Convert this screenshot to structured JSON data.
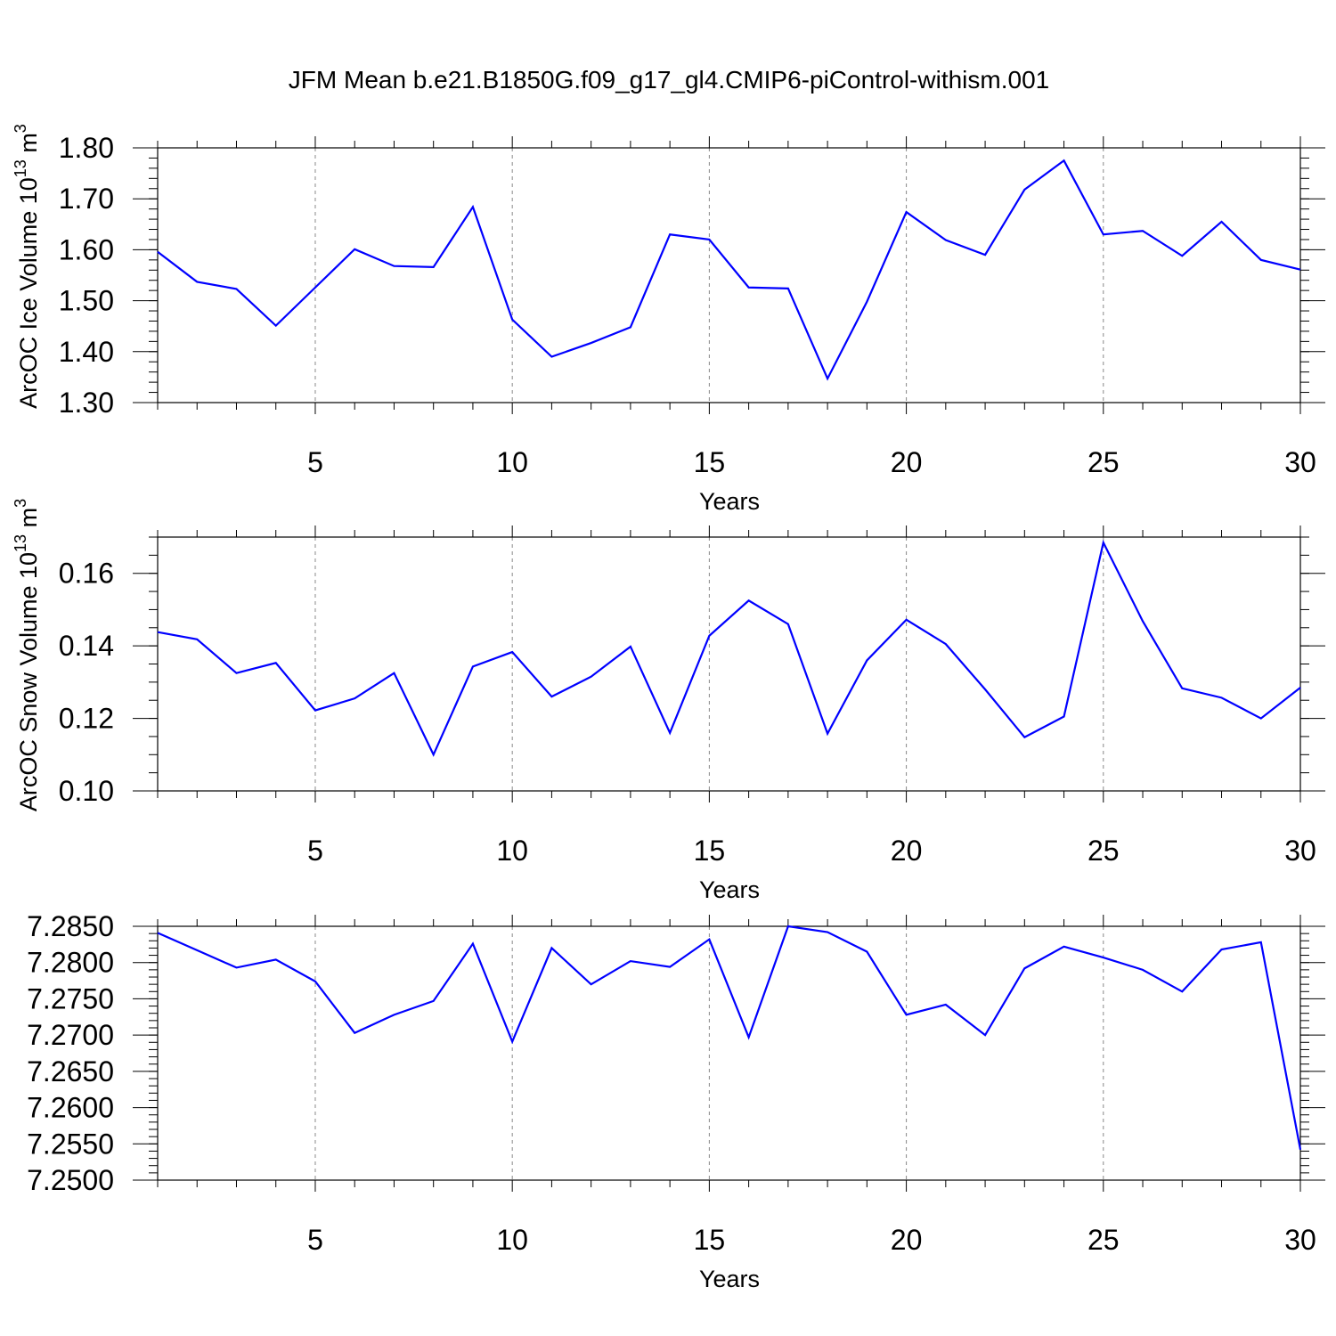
{
  "title": "JFM Mean b.e21.B1850G.f09_g17_gl4.CMIP6-piControl-withism.001",
  "line_color": "#0000ff",
  "chart_data": [
    {
      "type": "line",
      "ylabel": "ArcOC Ice Volume 10",
      "ylabel_exp": "13",
      "ylabel_unit": " m",
      "ylabel_unit_exp": "3",
      "xlabel": "Years",
      "xlim": [
        1,
        30
      ],
      "ylim": [
        1.3,
        1.8
      ],
      "x_ticks": [
        5,
        10,
        15,
        20,
        25,
        30
      ],
      "y_ticks": [
        1.3,
        1.4,
        1.5,
        1.6,
        1.7,
        1.8
      ],
      "y_tick_labels": [
        "1.30",
        "1.40",
        "1.50",
        "1.60",
        "1.70",
        "1.80"
      ],
      "y_minor_step": 0.02,
      "grid_x": [
        5,
        10,
        15,
        20,
        25
      ],
      "x": [
        1,
        2,
        3,
        4,
        5,
        6,
        7,
        8,
        9,
        10,
        11,
        12,
        13,
        14,
        15,
        16,
        17,
        18,
        19,
        20,
        21,
        22,
        23,
        24,
        25,
        26,
        27,
        28,
        29,
        30
      ],
      "values": [
        1.596,
        1.537,
        1.523,
        1.451,
        1.526,
        1.601,
        1.568,
        1.566,
        1.684,
        1.463,
        1.39,
        1.417,
        1.448,
        1.63,
        1.62,
        1.526,
        1.524,
        1.347,
        1.498,
        1.674,
        1.619,
        1.59,
        1.718,
        1.775,
        1.63,
        1.637,
        1.588,
        1.655,
        1.58,
        1.561
      ]
    },
    {
      "type": "line",
      "ylabel": "ArcOC Snow Volume 10",
      "ylabel_exp": "13",
      "ylabel_unit": " m",
      "ylabel_unit_exp": "3",
      "xlabel": "Years",
      "xlim": [
        1,
        30
      ],
      "ylim": [
        0.1,
        0.17
      ],
      "x_ticks": [
        5,
        10,
        15,
        20,
        25,
        30
      ],
      "y_ticks": [
        0.1,
        0.12,
        0.14,
        0.16
      ],
      "y_tick_labels": [
        "0.10",
        "0.12",
        "0.14",
        "0.16"
      ],
      "y_minor_step": 0.005,
      "grid_x": [
        5,
        10,
        15,
        20,
        25
      ],
      "x": [
        1,
        2,
        3,
        4,
        5,
        6,
        7,
        8,
        9,
        10,
        11,
        12,
        13,
        14,
        15,
        16,
        17,
        18,
        19,
        20,
        21,
        22,
        23,
        24,
        25,
        26,
        27,
        28,
        29,
        30
      ],
      "values": [
        0.1438,
        0.1418,
        0.1325,
        0.1353,
        0.1222,
        0.1255,
        0.1325,
        0.11,
        0.1343,
        0.1383,
        0.126,
        0.1315,
        0.1398,
        0.116,
        0.1428,
        0.1525,
        0.146,
        0.1158,
        0.136,
        0.1472,
        0.1405,
        0.128,
        0.1148,
        0.1205,
        0.1685,
        0.1468,
        0.1283,
        0.1257,
        0.12,
        0.1285
      ]
    },
    {
      "type": "line",
      "ylabel": "",
      "xlabel": "Years",
      "xlim": [
        1,
        30
      ],
      "ylim": [
        7.25,
        7.285
      ],
      "x_ticks": [
        5,
        10,
        15,
        20,
        25,
        30
      ],
      "y_ticks": [
        7.25,
        7.255,
        7.26,
        7.265,
        7.27,
        7.275,
        7.28,
        7.285
      ],
      "y_tick_labels": [
        "7.2500",
        "7.2550",
        "7.2600",
        "7.2650",
        "7.2700",
        "7.2750",
        "7.2800",
        "7.2850"
      ],
      "y_minor_step": 0.001,
      "grid_x": [
        5,
        10,
        15,
        20,
        25
      ],
      "x": [
        1,
        2,
        3,
        4,
        5,
        6,
        7,
        8,
        9,
        10,
        11,
        12,
        13,
        14,
        15,
        16,
        17,
        18,
        19,
        20,
        21,
        22,
        23,
        24,
        25,
        26,
        27,
        28,
        29,
        30
      ],
      "values": [
        7.2841,
        7.2817,
        7.2793,
        7.2804,
        7.2774,
        7.2703,
        7.2728,
        7.2747,
        7.2826,
        7.2691,
        7.282,
        7.277,
        7.2802,
        7.2794,
        7.2832,
        7.2697,
        7.285,
        7.2842,
        7.2815,
        7.2728,
        7.2742,
        7.27,
        7.2792,
        7.2822,
        7.2807,
        7.279,
        7.276,
        7.2818,
        7.2828,
        7.2542
      ]
    }
  ]
}
